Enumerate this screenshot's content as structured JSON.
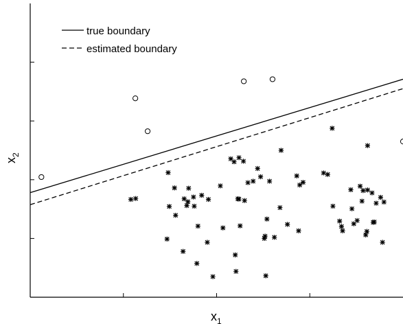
{
  "chart_data": {
    "type": "scatter",
    "title": "",
    "xlabel_main": "x",
    "xlabel_sub": "1",
    "ylabel_main": "x",
    "ylabel_sub": "2",
    "xlim": [
      0,
      1
    ],
    "ylim": [
      0,
      1
    ],
    "grid": false,
    "legend_position": "top-left",
    "series": [
      {
        "marker": "circle",
        "points": [
          [
            0.03,
            0.409
          ],
          [
            0.282,
            0.677
          ],
          [
            0.315,
            0.565
          ],
          [
            0.573,
            0.735
          ],
          [
            0.65,
            0.742
          ],
          [
            1.0,
            0.53
          ]
        ]
      },
      {
        "marker": "asterisk",
        "points": [
          [
            0.27,
            0.333
          ],
          [
            0.283,
            0.336
          ],
          [
            0.367,
            0.198
          ],
          [
            0.37,
            0.424
          ],
          [
            0.373,
            0.309
          ],
          [
            0.387,
            0.372
          ],
          [
            0.39,
            0.279
          ],
          [
            0.41,
            0.156
          ],
          [
            0.413,
            0.335
          ],
          [
            0.42,
            0.312
          ],
          [
            0.425,
            0.371
          ],
          [
            0.423,
            0.325
          ],
          [
            0.438,
            0.341
          ],
          [
            0.44,
            0.31
          ],
          [
            0.447,
            0.115
          ],
          [
            0.45,
            0.242
          ],
          [
            0.46,
            0.347
          ],
          [
            0.475,
            0.187
          ],
          [
            0.478,
            0.333
          ],
          [
            0.49,
            0.07
          ],
          [
            0.51,
            0.379
          ],
          [
            0.517,
            0.236
          ],
          [
            0.538,
            0.471
          ],
          [
            0.547,
            0.461
          ],
          [
            0.557,
            0.335
          ],
          [
            0.55,
            0.144
          ],
          [
            0.552,
            0.088
          ],
          [
            0.56,
            0.475
          ],
          [
            0.563,
            0.243
          ],
          [
            0.56,
            0.334
          ],
          [
            0.572,
            0.463
          ],
          [
            0.575,
            0.329
          ],
          [
            0.584,
            0.39
          ],
          [
            0.598,
            0.395
          ],
          [
            0.61,
            0.438
          ],
          [
            0.618,
            0.41
          ],
          [
            0.628,
            0.2
          ],
          [
            0.63,
            0.208
          ],
          [
            0.632,
            0.073
          ],
          [
            0.635,
            0.266
          ],
          [
            0.642,
            0.395
          ],
          [
            0.655,
            0.204
          ],
          [
            0.67,
            0.305
          ],
          [
            0.673,
            0.5
          ],
          [
            0.69,
            0.248
          ],
          [
            0.715,
            0.413
          ],
          [
            0.72,
            0.226
          ],
          [
            0.723,
            0.382
          ],
          [
            0.732,
            0.391
          ],
          [
            0.787,
            0.423
          ],
          [
            0.798,
            0.418
          ],
          [
            0.81,
            0.575
          ],
          [
            0.812,
            0.31
          ],
          [
            0.83,
            0.259
          ],
          [
            0.835,
            0.241
          ],
          [
            0.838,
            0.226
          ],
          [
            0.86,
            0.366
          ],
          [
            0.863,
            0.301
          ],
          [
            0.868,
            0.25
          ],
          [
            0.877,
            0.261
          ],
          [
            0.885,
            0.378
          ],
          [
            0.89,
            0.327
          ],
          [
            0.893,
            0.363
          ],
          [
            0.905,
            0.365
          ],
          [
            0.903,
            0.224
          ],
          [
            0.905,
            0.516
          ],
          [
            0.917,
            0.355
          ],
          [
            0.92,
            0.255
          ],
          [
            0.923,
            0.256
          ],
          [
            0.928,
            0.32
          ],
          [
            0.94,
            0.34
          ],
          [
            0.945,
            0.187
          ],
          [
            0.949,
            0.324
          ],
          [
            0.9,
            0.212
          ]
        ]
      }
    ],
    "lines": [
      {
        "name": "true boundary",
        "style": "solid",
        "x": [
          0,
          1
        ],
        "y": [
          0.356,
          0.742
        ]
      },
      {
        "name": "estimated boundary",
        "style": "dashed",
        "x": [
          0,
          1
        ],
        "y": [
          0.315,
          0.71
        ]
      }
    ]
  }
}
